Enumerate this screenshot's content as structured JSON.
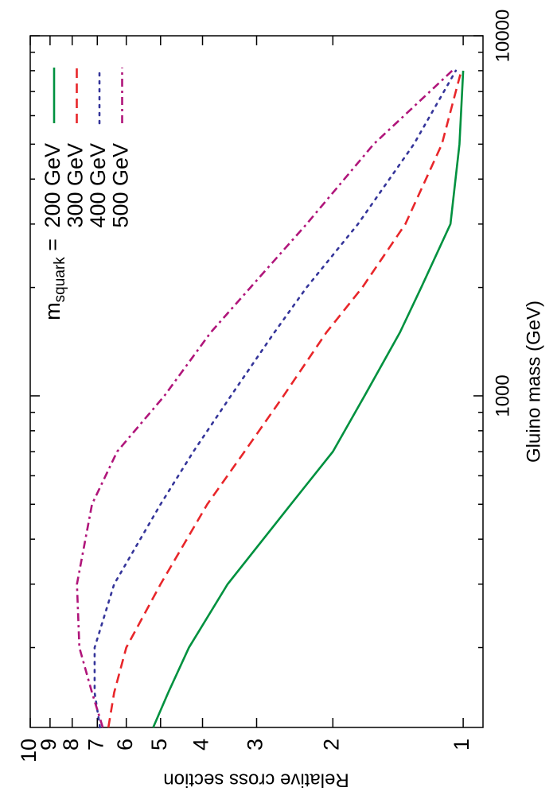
{
  "chart_data": {
    "type": "line",
    "xlabel": "Gluino mass (GeV)",
    "ylabel": "Relative cross section",
    "xscale": "log",
    "yscale": "log",
    "xlim": [
      120,
      10000
    ],
    "xticks": [
      1000,
      10000
    ],
    "xminorticks": [
      200,
      300,
      400,
      500,
      600,
      700,
      800,
      900,
      2000,
      3000,
      4000,
      5000,
      6000,
      7000,
      8000,
      9000
    ],
    "ylim": [
      0.9,
      10
    ],
    "yticks": [
      1,
      2,
      3,
      4,
      5,
      6,
      7,
      8,
      9,
      10
    ],
    "legend": "upper right",
    "legend_title": {
      "base": "m",
      "subscript": "squark",
      "tail": " ="
    },
    "x": [
      120,
      150,
      200,
      300,
      500,
      700,
      1000,
      1500,
      2000,
      3000,
      5000,
      8000
    ],
    "series": [
      {
        "name": "200 GeV",
        "color": "#00913f",
        "dash": "solid",
        "values": [
          5.2,
          4.8,
          4.3,
          3.5,
          2.5,
          2.0,
          1.69,
          1.4,
          1.25,
          1.07,
          1.02,
          1.0
        ]
      },
      {
        "name": "300 GeV",
        "color": "#e8262a",
        "dash": "dashed",
        "values": [
          6.6,
          6.4,
          6.0,
          5.0,
          3.9,
          3.2,
          2.6,
          2.07,
          1.71,
          1.36,
          1.12,
          1.01
        ]
      },
      {
        "name": "400 GeV",
        "color": "#35359a",
        "dash": "dotted",
        "values": [
          6.9,
          7.1,
          7.1,
          6.4,
          5.0,
          4.2,
          3.44,
          2.73,
          2.3,
          1.75,
          1.3,
          1.04
        ]
      },
      {
        "name": "500 GeV",
        "color": "#b0157a",
        "dash": "dashdot",
        "values": [
          6.8,
          7.2,
          7.7,
          7.8,
          7.2,
          6.3,
          4.9,
          3.83,
          3.1,
          2.3,
          1.61,
          1.06
        ]
      }
    ]
  }
}
